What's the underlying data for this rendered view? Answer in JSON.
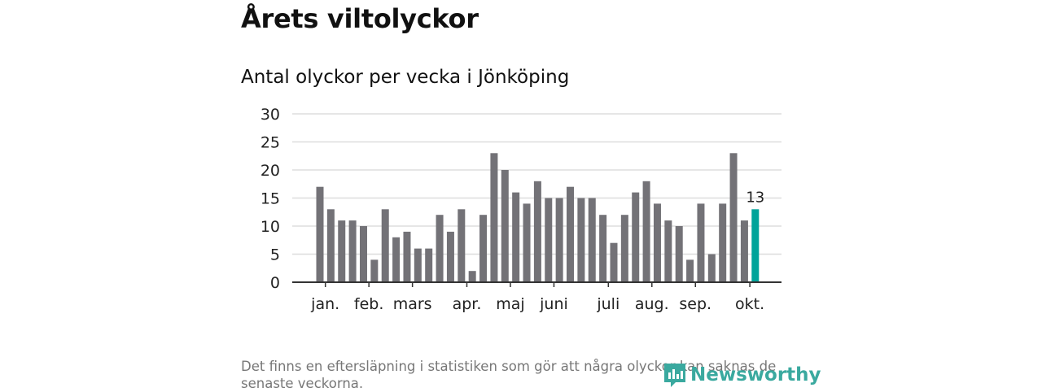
{
  "header": {
    "title": "Årets viltolyckor",
    "subtitle": "Antal olyckor per vecka i Jönköping"
  },
  "footnote": "Det finns en eftersläpning i statistiken som gör att några olyckor kan saknas de senaste veckorna.",
  "logo": {
    "text": "Newsworthy"
  },
  "colors": {
    "bar": "#737277",
    "highlight": "#00a39a",
    "grid": "#dddddd",
    "axis": "#333333"
  },
  "chart_data": {
    "type": "bar",
    "title": "Antal olyckor per vecka i Jönköping",
    "x": [
      1,
      2,
      3,
      4,
      5,
      6,
      7,
      8,
      9,
      10,
      11,
      12,
      13,
      14,
      15,
      16,
      17,
      18,
      19,
      20,
      21,
      22,
      23,
      24,
      25,
      26,
      27,
      28,
      29,
      30,
      31,
      32,
      33,
      34,
      35,
      36,
      37,
      38,
      39,
      40,
      41
    ],
    "values": [
      17,
      13,
      11,
      11,
      10,
      4,
      13,
      8,
      9,
      6,
      6,
      12,
      9,
      13,
      2,
      12,
      23,
      20,
      16,
      14,
      18,
      15,
      15,
      17,
      15,
      15,
      12,
      7,
      12,
      16,
      18,
      14,
      11,
      10,
      4,
      14,
      5,
      14,
      23,
      11,
      13
    ],
    "ylim": [
      0,
      30
    ],
    "yticks": [
      0,
      5,
      10,
      15,
      20,
      25,
      30
    ],
    "month_ticks": [
      {
        "label": "jan.",
        "x": 1.5
      },
      {
        "label": "feb.",
        "x": 5.5
      },
      {
        "label": "mars",
        "x": 9.5
      },
      {
        "label": "apr.",
        "x": 14.5
      },
      {
        "label": "maj",
        "x": 18.5
      },
      {
        "label": "juni",
        "x": 22.5
      },
      {
        "label": "juli",
        "x": 27.5
      },
      {
        "label": "aug.",
        "x": 31.5
      },
      {
        "label": "sep.",
        "x": 35.5
      },
      {
        "label": "okt.",
        "x": 40.5
      }
    ],
    "highlight_label": "13",
    "grid": true,
    "legend": "none"
  }
}
